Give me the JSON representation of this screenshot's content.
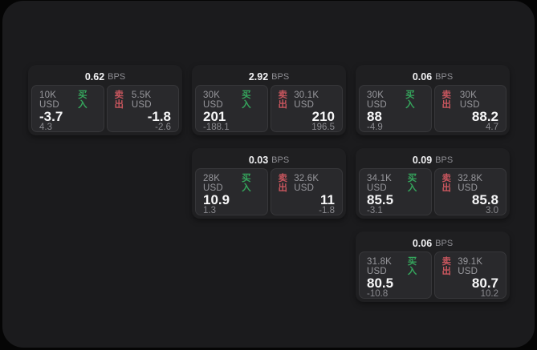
{
  "labels": {
    "bps": "BPS",
    "buy": "买入",
    "sell": "卖出"
  },
  "colors": {
    "buy": "#35a55c",
    "sell": "#c9565e",
    "panel_bg": "#1b1b1d",
    "card_bg": "#1f1f21",
    "tile_bg": "#29292c"
  },
  "cards": [
    {
      "row": 1,
      "col": 1,
      "bps": "0.62",
      "buy": {
        "amount": "10K USD",
        "value": "-3.7",
        "delta": "4.3"
      },
      "sell": {
        "amount": "5.5K USD",
        "value": "-1.8",
        "delta": "-2.6"
      }
    },
    {
      "row": 1,
      "col": 2,
      "bps": "2.92",
      "buy": {
        "amount": "30K USD",
        "value": "201",
        "delta": "-188.1"
      },
      "sell": {
        "amount": "30.1K USD",
        "value": "210",
        "delta": "196.5"
      }
    },
    {
      "row": 1,
      "col": 3,
      "bps": "0.06",
      "buy": {
        "amount": "30K USD",
        "value": "88",
        "delta": "-4.9"
      },
      "sell": {
        "amount": "30K USD",
        "value": "88.2",
        "delta": "4.7"
      }
    },
    {
      "row": 2,
      "col": 2,
      "bps": "0.03",
      "buy": {
        "amount": "28K USD",
        "value": "10.9",
        "delta": "1.3"
      },
      "sell": {
        "amount": "32.6K USD",
        "value": "11",
        "delta": "-1.8"
      }
    },
    {
      "row": 2,
      "col": 3,
      "bps": "0.09",
      "buy": {
        "amount": "34.1K USD",
        "value": "85.5",
        "delta": "-3.1"
      },
      "sell": {
        "amount": "32.8K USD",
        "value": "85.8",
        "delta": "3.0"
      }
    },
    {
      "row": 3,
      "col": 3,
      "bps": "0.06",
      "buy": {
        "amount": "31.8K USD",
        "value": "80.5",
        "delta": "-10.8"
      },
      "sell": {
        "amount": "39.1K USD",
        "value": "80.7",
        "delta": "10.2"
      }
    }
  ]
}
